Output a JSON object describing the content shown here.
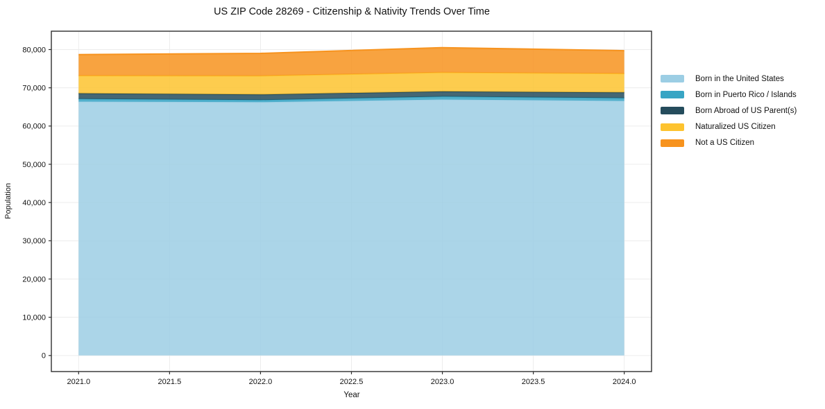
{
  "chart_data": {
    "type": "area",
    "stacked": true,
    "title": "US ZIP Code 28269 - Citizenship & Nativity Trends Over Time",
    "xlabel": "Year",
    "ylabel": "Population",
    "x": [
      2021,
      2022,
      2023,
      2024
    ],
    "series": [
      {
        "name": "Born in the United States",
        "color": "#9CCEE4",
        "values": [
          66400,
          66250,
          66950,
          66600
        ]
      },
      {
        "name": "Born in Puerto Rico / Islands",
        "color": "#38A5C4",
        "values": [
          700,
          550,
          750,
          700
        ]
      },
      {
        "name": "Born Abroad of US Parent(s)",
        "color": "#254C5C",
        "values": [
          1450,
          1450,
          1350,
          1500
        ]
      },
      {
        "name": "Naturalized US Citizen",
        "color": "#FDC32F",
        "values": [
          4600,
          4850,
          4950,
          4900
        ]
      },
      {
        "name": "Not a US Citizen",
        "color": "#F7931E",
        "values": [
          5550,
          5900,
          6500,
          6000
        ]
      }
    ],
    "totals": [
      78700,
      79000,
      80500,
      79700
    ],
    "xlim": [
      2020.85,
      2024.15
    ],
    "ylim": [
      -4200,
      84800
    ],
    "x_ticks": [
      "2021.0",
      "2021.5",
      "2022.0",
      "2022.5",
      "2023.0",
      "2023.5",
      "2024.0"
    ],
    "x_tick_values": [
      2021,
      2021.5,
      2022,
      2022.5,
      2023,
      2023.5,
      2024
    ],
    "y_ticks": [
      "0",
      "10,000",
      "20,000",
      "30,000",
      "40,000",
      "50,000",
      "60,000",
      "70,000",
      "80,000"
    ],
    "y_tick_values": [
      0,
      10000,
      20000,
      30000,
      40000,
      50000,
      60000,
      70000,
      80000
    ],
    "grid": true,
    "legend_position": "right-outside",
    "colors": {
      "grid": "#ececec",
      "frame": "#2d2d2d",
      "background": "#ffffff"
    }
  }
}
